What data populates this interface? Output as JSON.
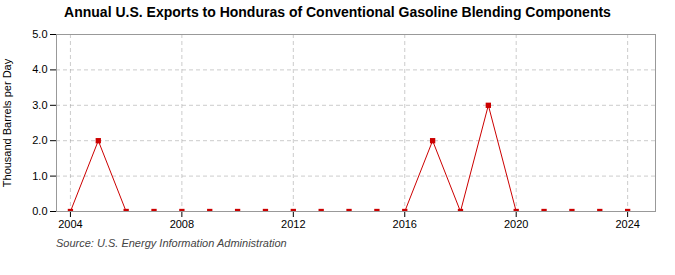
{
  "chart_data": {
    "type": "line",
    "title": "Annual U.S. Exports to Honduras of Conventional Gasoline Blending Components",
    "ylabel": "Thousand Barrels per Day",
    "source": "Source: U.S. Energy Information Administration",
    "x": [
      2004,
      2005,
      2006,
      2007,
      2008,
      2009,
      2010,
      2011,
      2012,
      2013,
      2014,
      2015,
      2016,
      2017,
      2018,
      2019,
      2020,
      2021,
      2022,
      2023,
      2024
    ],
    "values": [
      0.0,
      2.0,
      0.0,
      0.0,
      0.0,
      0.0,
      0.0,
      0.0,
      0.0,
      0.0,
      0.0,
      0.0,
      0.0,
      2.0,
      0.0,
      3.0,
      0.0,
      0.0,
      0.0,
      0.0,
      0.0
    ],
    "color": "#cc0000",
    "marker": "square",
    "xlim": [
      2003.5,
      2025
    ],
    "ylim": [
      0.0,
      5.0
    ],
    "xticks": [
      2004,
      2008,
      2012,
      2016,
      2020,
      2024
    ],
    "yticks": [
      {
        "value": 0.0,
        "label": "0.0"
      },
      {
        "value": 1.0,
        "label": "1.0"
      },
      {
        "value": 2.0,
        "label": "2.0"
      },
      {
        "value": 3.0,
        "label": "3.0"
      },
      {
        "value": 4.0,
        "label": "4.0"
      },
      {
        "value": 5.0,
        "label": "5.0"
      }
    ],
    "grid": true
  }
}
